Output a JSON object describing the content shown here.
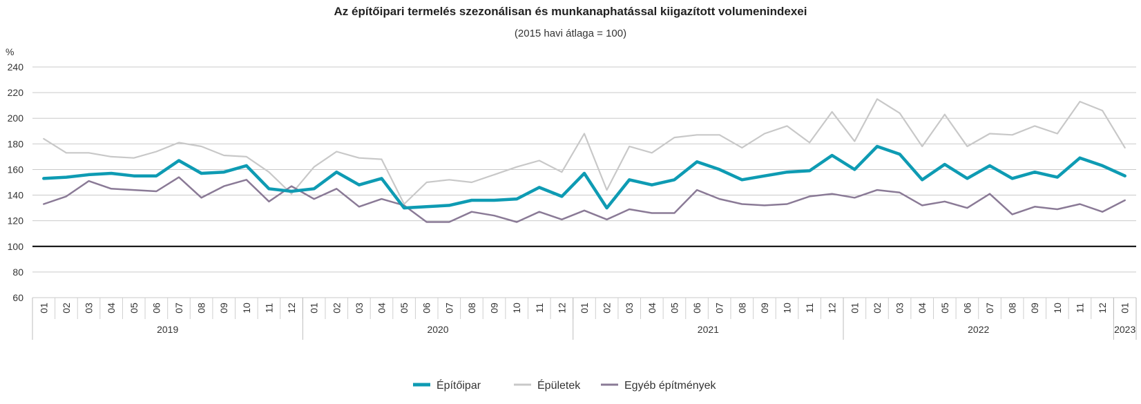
{
  "chart_data": {
    "type": "line",
    "title": "Az építőipari termelés szezonálisan és munkanaphatással kiigazított volumenindexei",
    "subtitle": "(2015 havi átlaga = 100)",
    "ylabel": "%",
    "ylim": [
      60,
      240
    ],
    "yticks": [
      60,
      80,
      100,
      120,
      140,
      160,
      180,
      200,
      220,
      240
    ],
    "reference_line": 100,
    "grid": true,
    "legend_position": "bottom",
    "months": [
      "01",
      "02",
      "03",
      "04",
      "05",
      "06",
      "07",
      "08",
      "09",
      "10",
      "11",
      "12",
      "01",
      "02",
      "03",
      "04",
      "05",
      "06",
      "07",
      "08",
      "09",
      "10",
      "11",
      "12",
      "01",
      "02",
      "03",
      "04",
      "05",
      "06",
      "07",
      "08",
      "09",
      "10",
      "11",
      "12",
      "01",
      "02",
      "03",
      "04",
      "05",
      "06",
      "07",
      "08",
      "09",
      "10",
      "11",
      "12",
      "01"
    ],
    "years": [
      {
        "label": "2019",
        "count": 12
      },
      {
        "label": "2020",
        "count": 12
      },
      {
        "label": "2021",
        "count": 12
      },
      {
        "label": "2022",
        "count": 12
      },
      {
        "label": "2023",
        "count": 1
      }
    ],
    "series": [
      {
        "name": "Épületek",
        "color": "#c8c8c8",
        "values": [
          184,
          173,
          173,
          170,
          169,
          174,
          181,
          178,
          171,
          170,
          158,
          141,
          162,
          174,
          169,
          168,
          133,
          150,
          152,
          150,
          156,
          162,
          167,
          158,
          188,
          144,
          178,
          173,
          185,
          187,
          187,
          177,
          188,
          194,
          181,
          205,
          182,
          215,
          204,
          178,
          203,
          178,
          188,
          187,
          194,
          188,
          213,
          206,
          177
        ]
      },
      {
        "name": "Egyéb építmények",
        "color": "#8a7a96",
        "values": [
          133,
          139,
          151,
          145,
          144,
          143,
          154,
          138,
          147,
          152,
          135,
          147,
          137,
          145,
          131,
          137,
          132,
          119,
          119,
          127,
          124,
          119,
          127,
          121,
          128,
          121,
          129,
          126,
          126,
          144,
          137,
          133,
          132,
          133,
          139,
          141,
          138,
          144,
          142,
          132,
          135,
          130,
          141,
          125,
          131,
          129,
          133,
          127,
          136
        ]
      },
      {
        "name": "Építőipar",
        "color": "#0e9bb3",
        "values": [
          153,
          154,
          156,
          157,
          155,
          155,
          167,
          157,
          158,
          163,
          145,
          143,
          145,
          158,
          148,
          153,
          130,
          131,
          132,
          136,
          136,
          137,
          146,
          139,
          157,
          130,
          152,
          148,
          152,
          166,
          160,
          152,
          155,
          158,
          159,
          171,
          160,
          178,
          172,
          152,
          164,
          153,
          163,
          153,
          158,
          154,
          169,
          163,
          155
        ]
      }
    ],
    "legend": [
      {
        "name": "Építőipar",
        "color": "#0e9bb3"
      },
      {
        "name": "Épületek",
        "color": "#c8c8c8"
      },
      {
        "name": "Egyéb építmények",
        "color": "#8a7a96"
      }
    ]
  }
}
